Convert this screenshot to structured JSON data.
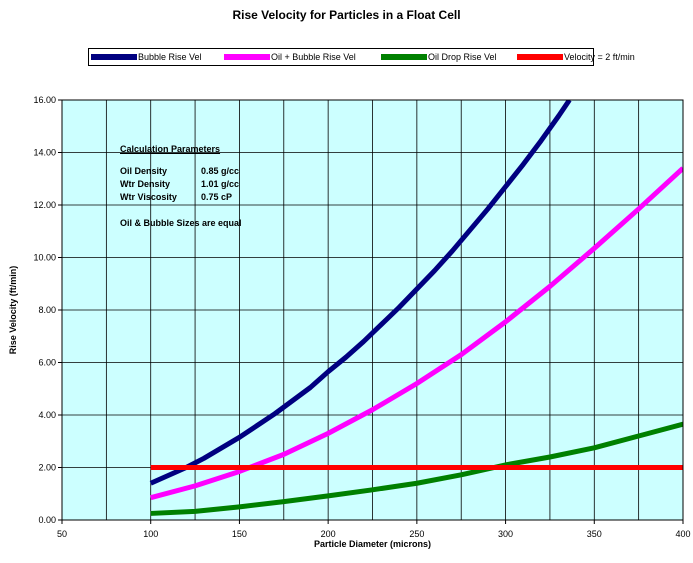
{
  "chart_data": {
    "type": "line",
    "title": "Rise Velocity for Particles in a Float Cell",
    "xlabel": "Particle Diameter (microns)",
    "ylabel": "Rise Velocity (ft/min)",
    "xlim": [
      50,
      400
    ],
    "ylim": [
      0,
      16
    ],
    "x_ticks": [
      50,
      100,
      150,
      200,
      250,
      300,
      350,
      400
    ],
    "x_tick_labels": [
      "50",
      "100",
      "150",
      "200",
      "250",
      "300",
      "350",
      "400"
    ],
    "x_minor_gridlines": [
      75,
      125,
      175,
      225,
      275,
      325,
      375
    ],
    "y_ticks": [
      0,
      2,
      4,
      6,
      8,
      10,
      12,
      14,
      16
    ],
    "y_tick_labels": [
      "0.00",
      "2.00",
      "4.00",
      "6.00",
      "8.00",
      "10.00",
      "12.00",
      "14.00",
      "16.00"
    ],
    "grid": true,
    "plot_background": "#ccffff",
    "legend_position": "top",
    "series": [
      {
        "name": "Bubble Rise Vel",
        "color": "#000080",
        "x": [
          100,
          110,
          120,
          130,
          140,
          150,
          160,
          170,
          180,
          190,
          200,
          210,
          220,
          230,
          240,
          250,
          260,
          270,
          280,
          290,
          300,
          310,
          320,
          330,
          336
        ],
        "y": [
          1.4,
          1.7,
          2.0,
          2.35,
          2.75,
          3.15,
          3.6,
          4.05,
          4.55,
          5.05,
          5.65,
          6.2,
          6.8,
          7.45,
          8.1,
          8.8,
          9.5,
          10.25,
          11.05,
          11.85,
          12.7,
          13.55,
          14.45,
          15.4,
          16.0
        ]
      },
      {
        "name": "Oil + Bubble Rise Vel",
        "color": "#ff00ff",
        "x": [
          100,
          125,
          150,
          175,
          200,
          225,
          250,
          275,
          300,
          325,
          350,
          375,
          400
        ],
        "y": [
          0.85,
          1.3,
          1.85,
          2.5,
          3.3,
          4.2,
          5.2,
          6.3,
          7.55,
          8.9,
          10.35,
          11.85,
          13.4
        ]
      },
      {
        "name": "Oil Drop Rise Vel",
        "color": "#008000",
        "x": [
          100,
          125,
          150,
          175,
          200,
          225,
          250,
          275,
          300,
          325,
          350,
          375,
          400
        ],
        "y": [
          0.25,
          0.33,
          0.5,
          0.7,
          0.92,
          1.15,
          1.4,
          1.72,
          2.1,
          2.4,
          2.75,
          3.2,
          3.65
        ]
      },
      {
        "name": "Velocity = 2 ft/min",
        "color": "#ff0000",
        "x": [
          100,
          400
        ],
        "y": [
          2.0,
          2.0
        ]
      }
    ]
  },
  "annotation": {
    "title": "Calculation Parameters",
    "rows": [
      {
        "label": "Oil Density",
        "value": "0.85 g/cc"
      },
      {
        "label": "Wtr Density",
        "value": "1.01 g/cc"
      },
      {
        "label": "Wtr Viscosity",
        "value": "0.75 cP"
      }
    ],
    "note": "Oil & Bubble Sizes are equal"
  }
}
